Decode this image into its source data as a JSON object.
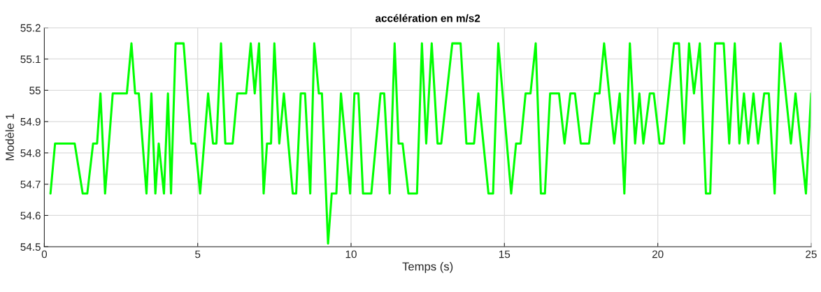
{
  "chart_data": {
    "type": "line",
    "title": "accélération en m/s2",
    "xlabel": "Temps (s)",
    "ylabel": "Modèle 1",
    "xlim": [
      0,
      25
    ],
    "xticks": [
      0,
      5,
      10,
      15,
      20,
      25
    ],
    "ylim": [
      54.5,
      55.2
    ],
    "yticks": [
      54.5,
      54.6,
      54.7,
      54.8,
      54.9,
      55,
      55.1,
      55.2
    ],
    "grid": true,
    "line_style": "solid",
    "marker": "none",
    "series": [
      {
        "color": "#00ff00",
        "x": [
          0.2,
          0.35,
          0.99,
          1.25,
          1.4,
          1.59,
          1.72,
          1.83,
          1.98,
          2.23,
          2.69,
          2.84,
          2.96,
          3.08,
          3.33,
          3.49,
          3.62,
          3.73,
          3.9,
          4.03,
          4.13,
          4.28,
          4.54,
          4.79,
          4.92,
          5.08,
          5.34,
          5.5,
          5.61,
          5.76,
          5.9,
          6.14,
          6.29,
          6.58,
          6.73,
          6.86,
          7.0,
          7.15,
          7.26,
          7.39,
          7.5,
          7.66,
          7.81,
          8.1,
          8.21,
          8.36,
          8.5,
          8.67,
          8.8,
          8.95,
          9.05,
          9.25,
          9.37,
          9.52,
          9.67,
          9.97,
          10.11,
          10.24,
          10.39,
          10.66,
          10.96,
          11.08,
          11.26,
          11.42,
          11.55,
          11.68,
          11.87,
          12.15,
          12.31,
          12.45,
          12.63,
          12.82,
          12.94,
          13.3,
          13.57,
          13.76,
          14.01,
          14.15,
          14.48,
          14.63,
          14.8,
          15.22,
          15.38,
          15.53,
          15.69,
          15.85,
          16.02,
          16.19,
          16.32,
          16.49,
          16.78,
          16.96,
          17.15,
          17.3,
          17.49,
          17.76,
          17.95,
          18.1,
          18.25,
          18.58,
          18.76,
          18.91,
          19.09,
          19.26,
          19.4,
          19.53,
          19.74,
          19.87,
          20.06,
          20.19,
          20.53,
          20.69,
          20.86,
          21.02,
          21.18,
          21.37,
          21.57,
          21.71,
          21.87,
          22.15,
          22.33,
          22.51,
          22.66,
          22.81,
          22.95,
          23.12,
          23.27,
          23.47,
          23.62,
          23.81,
          24.0,
          24.34,
          24.49,
          24.83,
          25.0
        ],
        "values": [
          54.67,
          54.83,
          54.83,
          54.67,
          54.67,
          54.83,
          54.83,
          54.99,
          54.67,
          54.99,
          54.99,
          55.15,
          54.99,
          54.99,
          54.67,
          54.99,
          54.67,
          54.83,
          54.67,
          54.99,
          54.67,
          55.15,
          55.15,
          54.83,
          54.83,
          54.67,
          54.99,
          54.83,
          54.83,
          55.15,
          54.83,
          54.83,
          54.99,
          54.99,
          55.15,
          54.99,
          55.15,
          54.67,
          54.83,
          54.83,
          55.15,
          54.83,
          54.99,
          54.67,
          54.67,
          54.99,
          54.99,
          54.67,
          55.15,
          54.99,
          54.99,
          54.51,
          54.67,
          54.67,
          54.99,
          54.67,
          54.99,
          54.99,
          54.67,
          54.67,
          54.99,
          54.99,
          54.67,
          55.15,
          54.83,
          54.83,
          54.67,
          54.67,
          55.15,
          54.83,
          55.15,
          54.83,
          54.83,
          55.15,
          55.15,
          54.83,
          54.83,
          54.99,
          54.67,
          54.67,
          55.15,
          54.67,
          54.83,
          54.83,
          54.99,
          54.99,
          55.15,
          54.67,
          54.67,
          54.99,
          54.99,
          54.83,
          54.99,
          54.99,
          54.83,
          54.83,
          54.99,
          54.99,
          55.15,
          54.83,
          54.99,
          54.67,
          55.15,
          54.83,
          54.99,
          54.83,
          54.99,
          54.99,
          54.83,
          54.83,
          55.15,
          55.15,
          54.83,
          55.15,
          54.99,
          55.15,
          54.67,
          54.67,
          55.15,
          55.15,
          54.83,
          55.15,
          54.83,
          54.99,
          54.83,
          54.99,
          54.83,
          54.99,
          54.99,
          54.67,
          55.15,
          54.83,
          54.99,
          54.67,
          54.99
        ]
      }
    ]
  }
}
